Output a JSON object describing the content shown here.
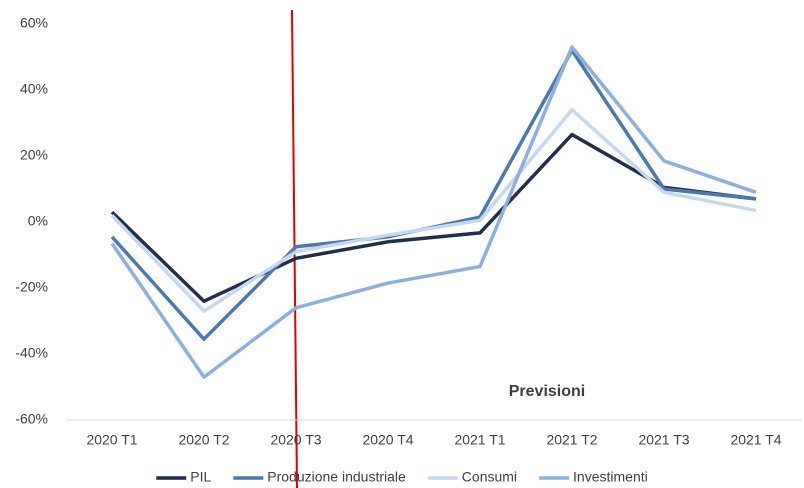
{
  "chart_data": {
    "type": "line",
    "categories": [
      "2020 T1",
      "2020 T2",
      "2020 T3",
      "2020 T4",
      "2021 T1",
      "2021 T2",
      "2021 T3",
      "2021 T4"
    ],
    "series": [
      {
        "name": "PIL",
        "color": "#1f2f4d",
        "values": [
          3,
          -24,
          -11,
          -6,
          -3.3,
          26.5,
          10.5,
          7
        ]
      },
      {
        "name": "Produzione industriale",
        "color": "#4a79b0",
        "values": [
          -4.5,
          -35.5,
          -7.5,
          -4.5,
          1.5,
          52,
          10,
          7
        ]
      },
      {
        "name": "Consumi",
        "color": "#c5d8ef",
        "values": [
          2,
          -27,
          -9,
          -4,
          0.5,
          34,
          9,
          3.5
        ]
      },
      {
        "name": "Investimenti",
        "color": "#8cb0de",
        "values": [
          -6.5,
          -47,
          -26,
          -18.5,
          -13.5,
          53,
          18.5,
          9
        ]
      }
    ],
    "ylim": [
      -60,
      60
    ],
    "yticks": [
      {
        "value": -60,
        "label": "-60%"
      },
      {
        "value": -40,
        "label": "-40%"
      },
      {
        "value": -20,
        "label": "-20%"
      },
      {
        "value": 0,
        "label": "0%"
      },
      {
        "value": 20,
        "label": "20%"
      },
      {
        "value": 40,
        "label": "40%"
      },
      {
        "value": 60,
        "label": "60%"
      }
    ],
    "grid": false,
    "annotation": "Previsioni"
  }
}
